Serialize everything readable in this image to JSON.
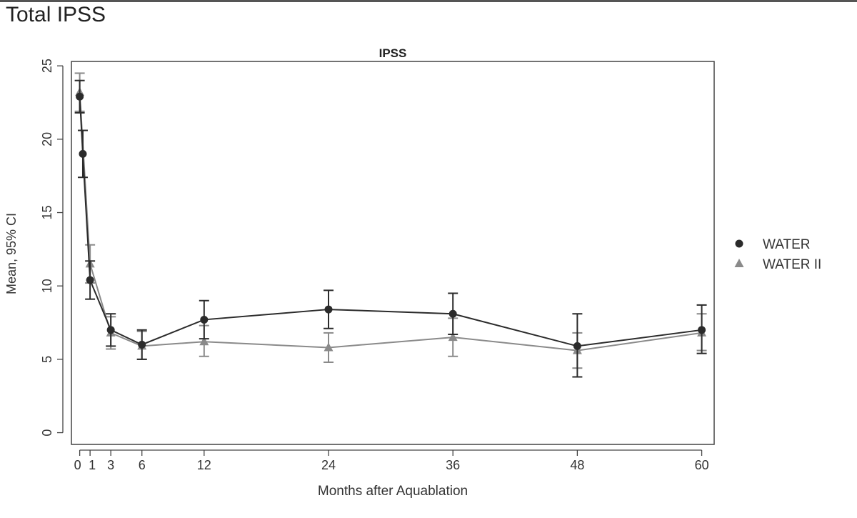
{
  "page": {
    "heading": "Total IPSS"
  },
  "chart_data": {
    "type": "line",
    "title": "IPSS",
    "xlabel": "Months after Aquablation",
    "ylabel": "Mean, 95% CI",
    "xlim": [
      -0.8,
      61.2
    ],
    "ylim": [
      -0.8,
      25.3
    ],
    "xticks": [
      0,
      1,
      3,
      6,
      12,
      24,
      36,
      48,
      60
    ],
    "xtick_labels": [
      "0",
      "1",
      "3",
      "6",
      "12",
      "24",
      "36",
      "48",
      "60"
    ],
    "yticks": [
      0,
      5,
      10,
      15,
      20,
      25
    ],
    "grid": false,
    "legend": "right",
    "series": [
      {
        "name": "WATER",
        "marker": "circle",
        "color": "#2b2b2b",
        "points": [
          {
            "x": 0,
            "y": 22.9,
            "lo": 21.8,
            "hi": 24.0
          },
          {
            "x": 0.3,
            "y": 19.0,
            "lo": 17.4,
            "hi": 20.6
          },
          {
            "x": 1,
            "y": 10.4,
            "lo": 9.1,
            "hi": 11.7
          },
          {
            "x": 3,
            "y": 7.0,
            "lo": 5.9,
            "hi": 8.1
          },
          {
            "x": 6,
            "y": 6.0,
            "lo": 5.0,
            "hi": 7.0
          },
          {
            "x": 12,
            "y": 7.7,
            "lo": 6.4,
            "hi": 9.0
          },
          {
            "x": 24,
            "y": 8.4,
            "lo": 7.1,
            "hi": 9.7
          },
          {
            "x": 36,
            "y": 8.1,
            "lo": 6.7,
            "hi": 9.5
          },
          {
            "x": 48,
            "y": 5.9,
            "lo": 3.8,
            "hi": 8.1
          },
          {
            "x": 60,
            "y": 7.0,
            "lo": 5.4,
            "hi": 8.7
          }
        ]
      },
      {
        "name": "WATER II",
        "marker": "triangle",
        "color": "#8a8a8a",
        "points": [
          {
            "x": 0,
            "y": 23.2,
            "lo": 21.9,
            "hi": 24.5
          },
          {
            "x": 1,
            "y": 11.5,
            "lo": 10.2,
            "hi": 12.8
          },
          {
            "x": 3,
            "y": 6.8,
            "lo": 5.7,
            "hi": 7.9
          },
          {
            "x": 6,
            "y": 5.9,
            "lo": 5.0,
            "hi": 6.9
          },
          {
            "x": 12,
            "y": 6.2,
            "lo": 5.2,
            "hi": 7.3
          },
          {
            "x": 24,
            "y": 5.8,
            "lo": 4.8,
            "hi": 6.8
          },
          {
            "x": 36,
            "y": 6.5,
            "lo": 5.2,
            "hi": 7.8
          },
          {
            "x": 48,
            "y": 5.6,
            "lo": 4.4,
            "hi": 6.8
          },
          {
            "x": 60,
            "y": 6.8,
            "lo": 5.6,
            "hi": 8.1
          }
        ]
      }
    ]
  }
}
